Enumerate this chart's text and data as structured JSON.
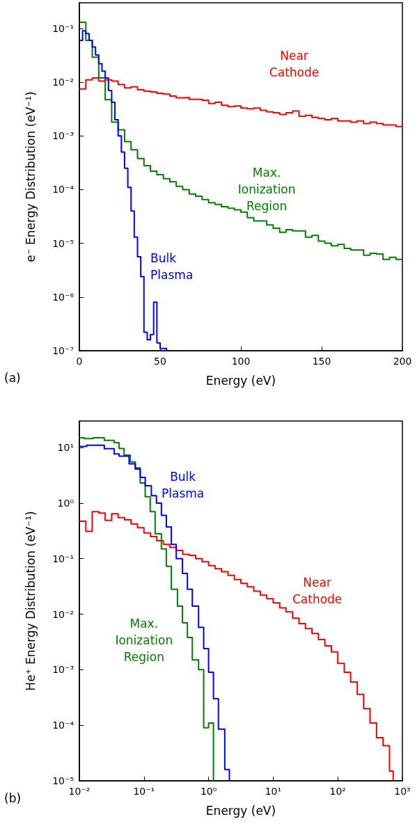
{
  "chart_data": [
    {
      "type": "step",
      "xlabel": "Energy (eV)",
      "ylabel": "e⁻ Energy Distribution (eV⁻¹)",
      "annotations": [
        "(a)"
      ],
      "log": "y",
      "xlim": [
        0,
        200
      ],
      "ylim": [
        1e-07,
        0.3
      ],
      "xticks": [
        0,
        50,
        100,
        150,
        200
      ],
      "yticks": [
        {
          "value": 1e-07,
          "label": "10⁻⁷"
        },
        {
          "value": 1e-06,
          "label": "10⁻⁶"
        },
        {
          "value": 1e-05,
          "label": "10⁻⁵"
        },
        {
          "value": 0.0001,
          "label": "10⁻⁴"
        },
        {
          "value": 0.001,
          "label": "10⁻³"
        },
        {
          "value": 0.01,
          "label": "10⁻²"
        },
        {
          "value": 0.1,
          "label": "10⁻¹"
        }
      ],
      "x": [
        0,
        4,
        8,
        12,
        16,
        20,
        24,
        28,
        32,
        36,
        40,
        44,
        48,
        52,
        56,
        60,
        64,
        68,
        72,
        76,
        80,
        84,
        88,
        92,
        96,
        100,
        104,
        108,
        112,
        116,
        120,
        124,
        128,
        132,
        136,
        140,
        144,
        148,
        152,
        156,
        160,
        164,
        168,
        172,
        176,
        180,
        184,
        188,
        192,
        196,
        200
      ],
      "series": [
        {
          "name": "Near Cathode",
          "color": "#ff0000",
          "values": [
            0.0075,
            0.011,
            0.012,
            0.0105,
            0.011,
            0.0105,
            0.009,
            0.0078,
            0.0082,
            0.0072,
            0.0068,
            0.0066,
            0.0062,
            0.006,
            0.0055,
            0.0051,
            0.0052,
            0.0048,
            0.0048,
            0.0046,
            0.004,
            0.0042,
            0.0037,
            0.0035,
            0.0036,
            0.0033,
            0.0032,
            0.0033,
            0.003,
            0.0028,
            0.0027,
            0.0025,
            0.0027,
            0.0029,
            0.0023,
            0.0024,
            0.0022,
            0.0021,
            0.002,
            0.0021,
            0.0019,
            0.0019,
            0.0018,
            0.0019,
            0.0017,
            0.0018,
            0.0017,
            0.0016,
            0.0016,
            0.0015,
            0.0015
          ]
        },
        {
          "name": "Max. Ionization Region",
          "color": "#008000",
          "values": [
            0.13,
            0.06,
            0.029,
            0.012,
            0.0047,
            0.0018,
            0.0013,
            0.00078,
            0.00055,
            0.00038,
            0.00028,
            0.00022,
            0.00019,
            0.00016,
            0.00014,
            0.000115,
            0.0001,
            8.3e-05,
            7.5e-05,
            6.5e-05,
            5.7e-05,
            5.3e-05,
            4.8e-05,
            4.5e-05,
            4.2e-05,
            3.8e-05,
            3e-05,
            2.6e-05,
            2.6e-05,
            2.2e-05,
            1.9e-05,
            1.6e-05,
            1.8e-05,
            1.7e-05,
            1.7e-05,
            1.3e-05,
            1.4e-05,
            1.1e-05,
            1e-05,
            9e-06,
            9.5e-06,
            8e-06,
            7.5e-06,
            7.5e-06,
            6e-06,
            6.5e-06,
            6.3e-06,
            5e-06,
            5.5e-06,
            5e-06,
            5e-06
          ]
        },
        {
          "name": "Bulk Plasma",
          "color": "#0000ff",
          "x": [
            0,
            2,
            4,
            6,
            8,
            10,
            12,
            14,
            16,
            18,
            20,
            22,
            24,
            26,
            28,
            30,
            32,
            34,
            36,
            38,
            40,
            42,
            44,
            46,
            48,
            50,
            52,
            54
          ],
          "values": [
            0.06,
            0.09,
            0.08,
            0.06,
            0.045,
            0.032,
            0.022,
            0.016,
            0.012,
            0.007,
            0.0042,
            0.002,
            0.001,
            0.0005,
            0.00025,
            0.00011,
            4e-05,
            1.3e-05,
            5.6e-06,
            2.4e-06,
            2.2e-07,
            1.6e-07,
            2e-07,
            8e-07,
            1.4e-07,
            1.1e-07,
            1.1e-07,
            1e-07
          ]
        }
      ]
    },
    {
      "type": "step",
      "xlabel": "Energy (eV)",
      "ylabel": "He⁺ Energy Distribution (eV⁻¹)",
      "annotations": [
        "(b)"
      ],
      "log": "xy",
      "xlim": [
        0.01,
        1000
      ],
      "ylim": [
        1e-05,
        30
      ],
      "xticks": [
        {
          "value": 0.01,
          "label": "10⁻²"
        },
        {
          "value": 0.1,
          "label": "10⁻¹"
        },
        {
          "value": 1,
          "label": "10⁰"
        },
        {
          "value": 10,
          "label": "10¹"
        },
        {
          "value": 100,
          "label": "10²"
        },
        {
          "value": 1000,
          "label": "10³"
        }
      ],
      "yticks": [
        {
          "value": 1e-05,
          "label": "10⁻⁵"
        },
        {
          "value": 0.0001,
          "label": "10⁻⁴"
        },
        {
          "value": 0.001,
          "label": "10⁻³"
        },
        {
          "value": 0.01,
          "label": "10⁻²"
        },
        {
          "value": 0.1,
          "label": "10⁻¹"
        },
        {
          "value": 1,
          "label": "10⁰"
        },
        {
          "value": 10,
          "label": "10¹"
        }
      ],
      "series": [
        {
          "name": "Near Cathode",
          "color": "#ff0000",
          "x": [
            0.01,
            0.0126,
            0.0158,
            0.02,
            0.0251,
            0.0316,
            0.0398,
            0.0501,
            0.0631,
            0.0794,
            0.1,
            0.126,
            0.158,
            0.2,
            0.251,
            0.316,
            0.398,
            0.501,
            0.631,
            0.794,
            1,
            1.26,
            1.58,
            2,
            2.51,
            3.16,
            3.98,
            5.01,
            6.31,
            7.94,
            10,
            12.6,
            15.8,
            20,
            25.1,
            31.6,
            39.8,
            50.1,
            63.1,
            79.4,
            100,
            126,
            158,
            200,
            251,
            316,
            398,
            501,
            631,
            720
          ],
          "values": [
            0.47,
            0.31,
            0.7,
            0.66,
            0.49,
            0.64,
            0.55,
            0.5,
            0.42,
            0.36,
            0.29,
            0.25,
            0.21,
            0.18,
            0.16,
            0.14,
            0.12,
            0.115,
            0.1,
            0.088,
            0.075,
            0.066,
            0.058,
            0.05,
            0.042,
            0.036,
            0.031,
            0.026,
            0.022,
            0.019,
            0.016,
            0.013,
            0.011,
            0.0085,
            0.0068,
            0.0055,
            0.0045,
            0.0035,
            0.0027,
            0.0021,
            0.0013,
            0.0009,
            0.0006,
            0.00036,
            0.0002,
            0.00011,
            6e-05,
            4.3e-05,
            1.5e-05,
            1e-05
          ]
        },
        {
          "name": "Max. Ionization Region",
          "color": "#008000",
          "x": [
            0.01,
            0.0119,
            0.0163,
            0.0243,
            0.0345,
            0.0412,
            0.0492,
            0.0615,
            0.0733,
            0.0875,
            0.1045,
            0.125,
            0.149,
            0.186,
            0.222,
            0.265,
            0.33,
            0.394,
            0.47,
            0.56,
            0.7,
            0.84,
            1,
            1.19
          ],
          "values": [
            15,
            14.5,
            15,
            13.5,
            12.3,
            9.6,
            7.3,
            5.5,
            4.3,
            2.3,
            1.3,
            0.7,
            0.28,
            0.15,
            0.073,
            0.028,
            0.014,
            0.007,
            0.0038,
            0.0015,
            0.001,
            9e-05,
            0.00011,
            1e-05
          ]
        },
        {
          "name": "Bulk Plasma",
          "color": "#0000ff",
          "x": [
            0.01,
            0.013,
            0.0243,
            0.0345,
            0.0412,
            0.0588,
            0.0733,
            0.0875,
            0.1045,
            0.13,
            0.156,
            0.186,
            0.222,
            0.265,
            0.316,
            0.394,
            0.47,
            0.56,
            0.7,
            0.84,
            1,
            1.19,
            1.42,
            1.78,
            2.1
          ],
          "values": [
            10.5,
            11,
            9.5,
            7.7,
            7,
            5.1,
            4.1,
            2.9,
            2.05,
            1.36,
            1,
            0.6,
            0.37,
            0.18,
            0.1,
            0.054,
            0.028,
            0.014,
            0.0058,
            0.0024,
            0.0009,
            0.0003,
            8.5e-05,
            1.6e-05,
            1e-05
          ]
        }
      ]
    }
  ]
}
